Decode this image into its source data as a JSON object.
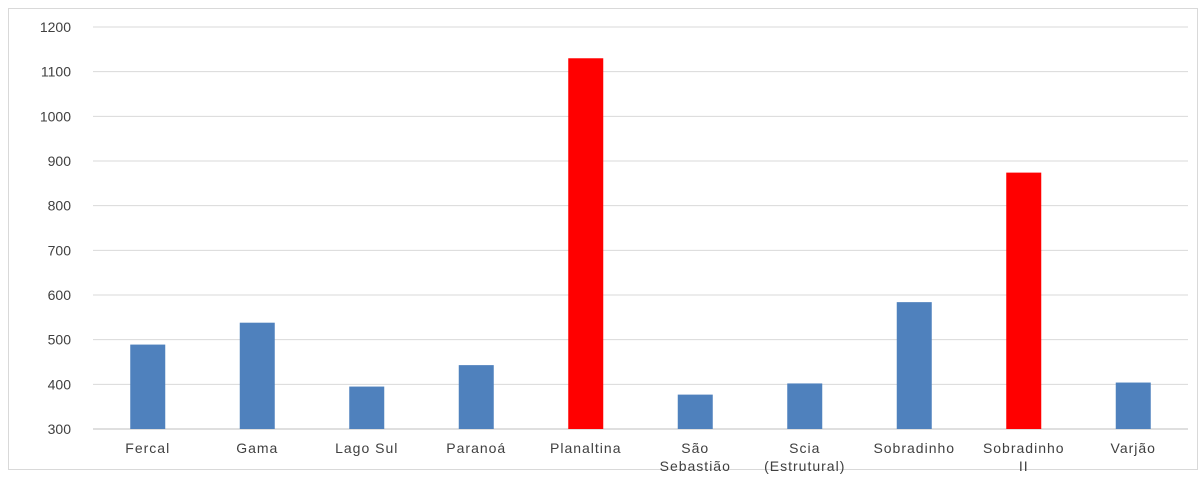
{
  "chart_data": {
    "type": "bar",
    "title": "",
    "xlabel": "",
    "ylabel": "",
    "ylim": [
      300,
      1200
    ],
    "yticks": [
      300,
      400,
      500,
      600,
      700,
      800,
      900,
      1000,
      1100,
      1200
    ],
    "grid": true,
    "legend": "none",
    "categories": [
      [
        "Fercal"
      ],
      [
        "Gama"
      ],
      [
        "Lago Sul"
      ],
      [
        "Paranoá"
      ],
      [
        "Planaltina"
      ],
      [
        "São",
        "Sebastião"
      ],
      [
        "Scia",
        "(Estrutural)"
      ],
      [
        "Sobradinho"
      ],
      [
        "Sobradinho",
        "II"
      ],
      [
        "Varjão"
      ]
    ],
    "values": [
      489,
      538,
      395,
      443,
      1130,
      377,
      402,
      584,
      874,
      404
    ],
    "colors": {
      "default": "#4f81bd",
      "highlight": "#ff0000"
    },
    "highlighted": [
      "Planaltina",
      "Sobradinho II"
    ]
  }
}
